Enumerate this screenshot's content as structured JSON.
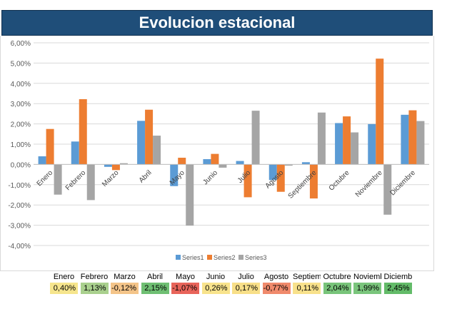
{
  "title": "Evolucion estacional",
  "chart_data": {
    "type": "bar",
    "title": "Evolucion estacional",
    "categories": [
      "Enero",
      "Febrero",
      "Marzo",
      "Abril",
      "Mayo",
      "Junio",
      "Julio",
      "Agosto",
      "Septiembre",
      "Octubre",
      "Noviembre",
      "Diciembre"
    ],
    "series": [
      {
        "name": "Series1",
        "color": "#5b9bd5",
        "values": [
          0.4,
          1.13,
          -0.12,
          2.15,
          -1.07,
          0.26,
          0.17,
          -0.77,
          0.11,
          2.04,
          1.99,
          2.45
        ]
      },
      {
        "name": "Series2",
        "color": "#ed7d31",
        "values": [
          1.75,
          3.22,
          -0.28,
          2.7,
          0.33,
          0.52,
          -1.62,
          -1.35,
          -1.68,
          2.37,
          5.22,
          2.67
        ]
      },
      {
        "name": "Series3",
        "color": "#a5a5a5",
        "values": [
          -1.49,
          -1.76,
          0.06,
          1.42,
          -3.02,
          -0.16,
          2.65,
          -0.06,
          2.56,
          1.58,
          -2.48,
          2.14
        ]
      }
    ],
    "ylim": [
      -4,
      6
    ],
    "y_ticks": [
      "-4,00%",
      "-3,00%",
      "-2,00%",
      "-1,00%",
      "0,00%",
      "1,00%",
      "2,00%",
      "3,00%",
      "4,00%",
      "5,00%",
      "6,00%"
    ],
    "grid": true,
    "legend": "bottom"
  },
  "summary": {
    "months": [
      "Enero",
      "Febrero",
      "Marzo",
      "Abril",
      "Mayo",
      "Junio",
      "Julio",
      "Agosto",
      "Septiembre",
      "Octubre",
      "Noviembre",
      "Diciembre"
    ],
    "values": [
      "0,40%",
      "1,13%",
      "-0,12%",
      "2,15%",
      "-1,07%",
      "0,26%",
      "0,17%",
      "-0,77%",
      "0,11%",
      "2,04%",
      "1,99%",
      "2,45%"
    ],
    "colors": [
      "#f6e58d",
      "#a9d08e",
      "#f4c489",
      "#6fbf73",
      "#e8645a",
      "#f8e38c",
      "#f8df88",
      "#f08a6c",
      "#f8e18b",
      "#78c47a",
      "#7ac57c",
      "#63bb69"
    ]
  }
}
